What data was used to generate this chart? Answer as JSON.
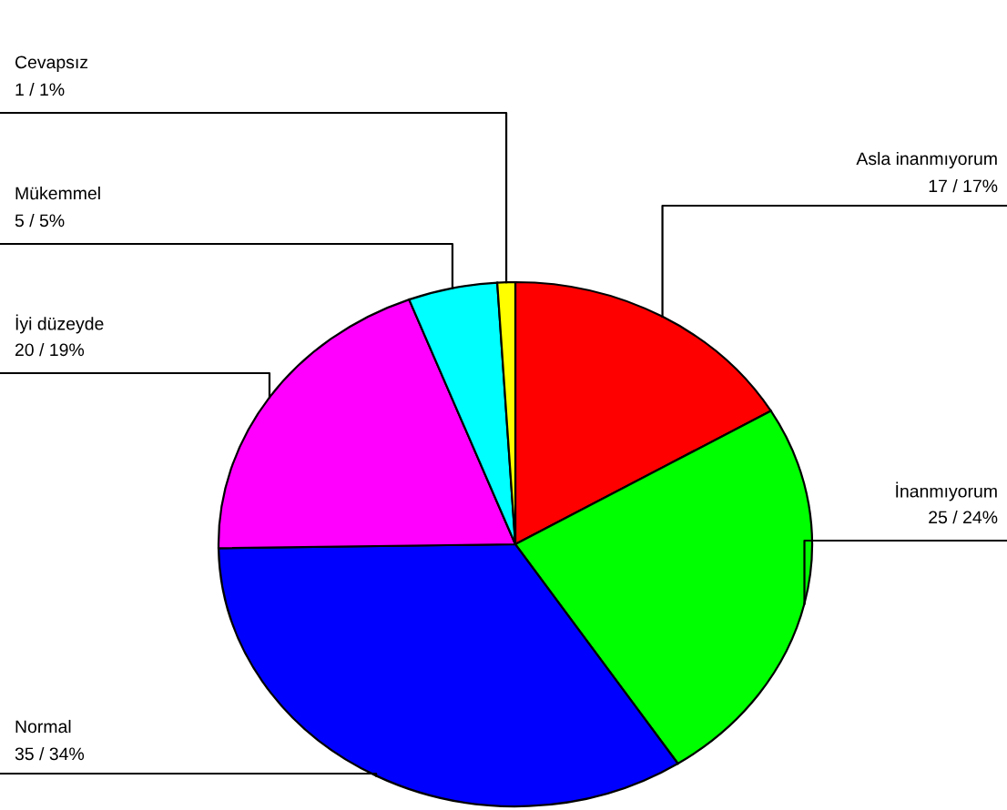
{
  "chart_data": {
    "type": "pie",
    "categories": [
      "Asla inanmıyorum",
      "İnanmıyorum",
      "Normal",
      "İyi düzeyde",
      "Mükemmel",
      "Cevapsız"
    ],
    "values": [
      17,
      25,
      35,
      20,
      5,
      1
    ],
    "colors": [
      "#ff0000",
      "#00ff00",
      "#0000ff",
      "#ff00ff",
      "#00ffff",
      "#ffff00"
    ],
    "value_labels": [
      "17 / 17%",
      "25 / 24%",
      "35 / 34%",
      "20 / 19%",
      "5 / 5%",
      "1 / 1%"
    ]
  }
}
